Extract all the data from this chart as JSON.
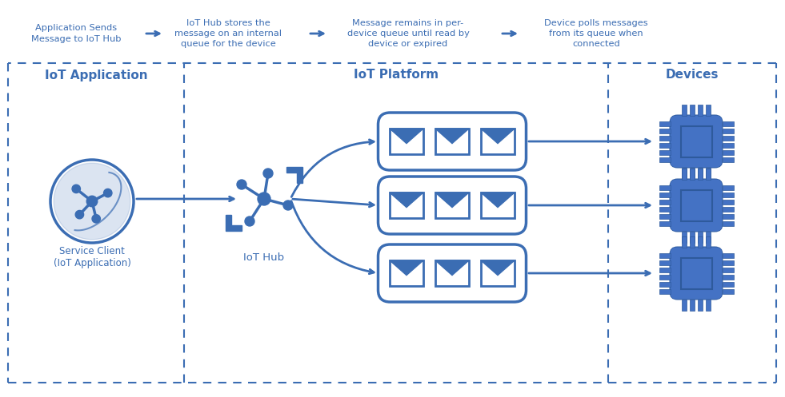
{
  "bg_color": "#ffffff",
  "blue": "#3B6DB3",
  "blue_fill": "#4472C4",
  "blue_dark": "#2E5A9C",
  "blue_light": "#7AA3D4",
  "top_steps": [
    "Application Sends\nMessage to IoT Hub",
    "IoT Hub stores the\nmessage on an internal\nqueue for the device",
    "Message remains in per-\ndevice queue until read by\ndevice or expired",
    "Device polls messages\nfrom its queue when\nconnected"
  ],
  "section_labels": [
    "IoT Application",
    "IoT Platform",
    "Devices"
  ],
  "service_client_label": "Service Client\n(IoT Application)",
  "iot_hub_label": "IoT Hub",
  "figw": 9.81,
  "figh": 4.97,
  "dpi": 100
}
